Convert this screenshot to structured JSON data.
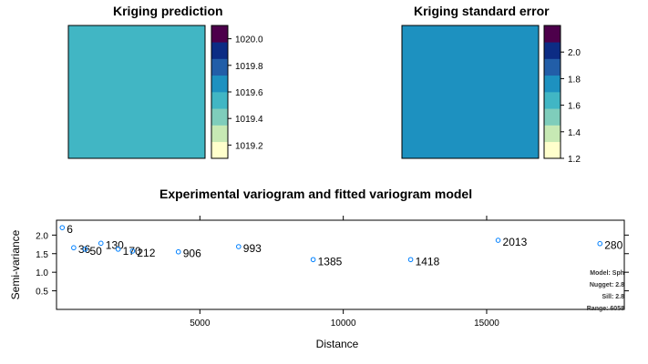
{
  "panels": [
    {
      "title": "Kriging prediction",
      "fill_color": "#41b6c4",
      "colorbar": {
        "colors": [
          "#ffffcc",
          "#c7e9b4",
          "#7fcdbb",
          "#41b6c4",
          "#1d91c0",
          "#225ea8",
          "#0c2c84",
          "#4d004b"
        ],
        "range": [
          1019.1,
          1020.1
        ],
        "ticks": [
          "1020.0",
          "1019.8",
          "1019.6",
          "1019.4",
          "1019.2"
        ],
        "tick_values": [
          1020.0,
          1019.8,
          1019.6,
          1019.4,
          1019.2
        ]
      }
    },
    {
      "title": "Kriging standard error",
      "fill_color": "#1d91c0",
      "colorbar": {
        "colors": [
          "#ffffcc",
          "#c7e9b4",
          "#7fcdbb",
          "#41b6c4",
          "#1d91c0",
          "#225ea8",
          "#0c2c84",
          "#4d004b"
        ],
        "range": [
          1.2,
          2.2
        ],
        "ticks": [
          "2.0",
          "1.8",
          "1.6",
          "1.4",
          "1.2"
        ],
        "tick_values": [
          2.0,
          1.8,
          1.6,
          1.4,
          1.2
        ]
      }
    }
  ],
  "chart_data": {
    "type": "scatter",
    "title": "Experimental variogram and fitted variogram model",
    "xlabel": "Distance",
    "ylabel": "Semi-variance",
    "xlim": [
      0,
      19800
    ],
    "ylim": [
      0,
      2.4
    ],
    "x_ticks": [
      5000,
      10000,
      15000
    ],
    "y_ticks": [
      "0.5",
      "1.0",
      "1.5",
      "2.0"
    ],
    "y_tick_values": [
      0.5,
      1.0,
      1.5,
      2.0
    ],
    "point_color": "#0080ff",
    "points": [
      {
        "x": 200,
        "y": 2.2,
        "label": "6"
      },
      {
        "x": 600,
        "y": 1.66,
        "label": "36"
      },
      {
        "x": 1550,
        "y": 1.78,
        "label": "130"
      },
      {
        "x": 1000,
        "y": 1.62,
        "label": "50"
      },
      {
        "x": 2150,
        "y": 1.62,
        "label": "170"
      },
      {
        "x": 2650,
        "y": 1.57,
        "label": "212"
      },
      {
        "x": 4250,
        "y": 1.55,
        "label": "906"
      },
      {
        "x": 6350,
        "y": 1.69,
        "label": "993"
      },
      {
        "x": 8950,
        "y": 1.34,
        "label": "1385"
      },
      {
        "x": 12350,
        "y": 1.34,
        "label": "1418"
      },
      {
        "x": 15400,
        "y": 1.86,
        "label": "2013"
      },
      {
        "x": 18950,
        "y": 1.77,
        "label": "280"
      }
    ],
    "model_info": [
      "Model: Sph",
      "Nugget: 2.8",
      "Sill: 2.8",
      "Range: 6058"
    ]
  }
}
